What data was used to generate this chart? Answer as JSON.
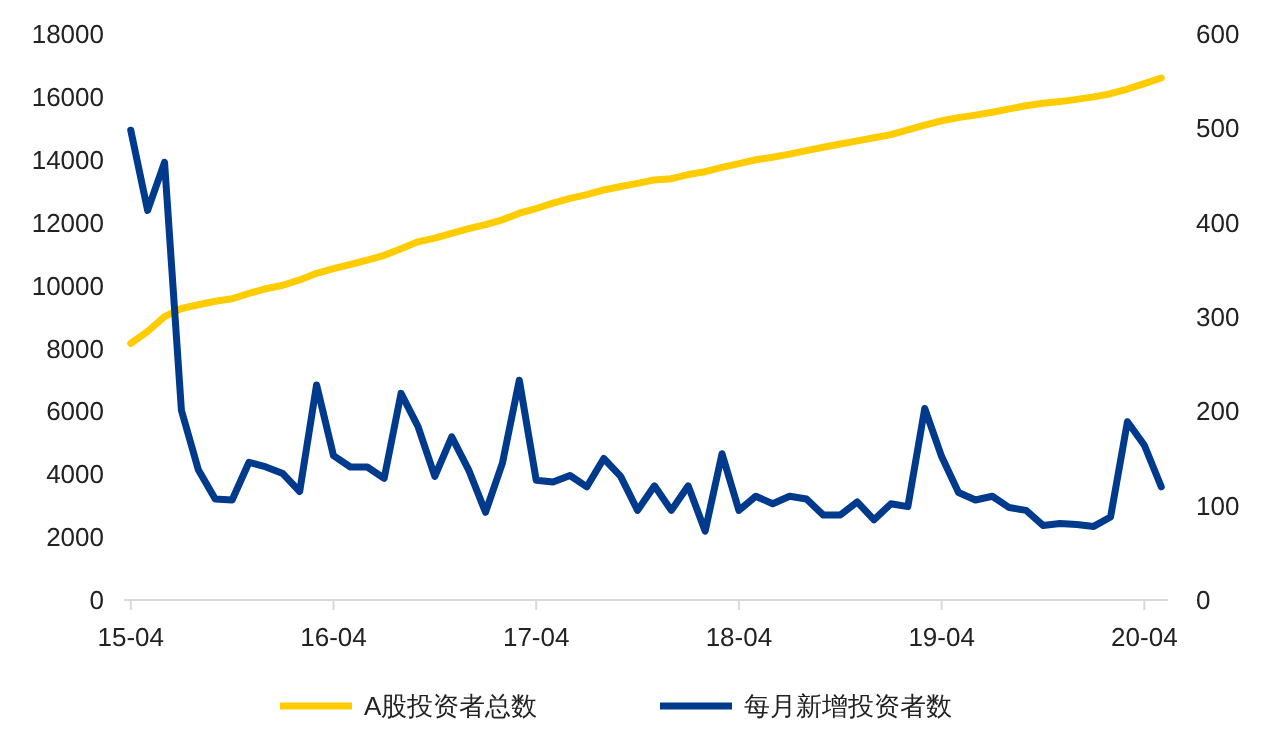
{
  "chart_data": {
    "type": "line",
    "categories": [
      "15-04",
      null,
      null,
      null,
      null,
      null,
      null,
      null,
      null,
      null,
      null,
      null,
      "16-04",
      null,
      null,
      null,
      null,
      null,
      null,
      null,
      null,
      null,
      null,
      null,
      "17-04",
      null,
      null,
      null,
      null,
      null,
      null,
      null,
      null,
      null,
      null,
      null,
      "18-04",
      null,
      null,
      null,
      null,
      null,
      null,
      null,
      null,
      null,
      null,
      null,
      "19-04",
      null,
      null,
      null,
      null,
      null,
      null,
      null,
      null,
      null,
      null,
      null,
      "20-04",
      null
    ],
    "series": [
      {
        "name": "A股投资者总数",
        "color": "#ffcc00",
        "values": [
          8160,
          8540,
          9010,
          9270,
          9390,
          9500,
          9580,
          9750,
          9900,
          10010,
          10180,
          10390,
          10540,
          10670,
          10810,
          10960,
          11170,
          11390,
          11510,
          11660,
          11810,
          11940,
          12090,
          12300,
          12450,
          12620,
          12770,
          12890,
          13040,
          13150,
          13250,
          13360,
          13400,
          13530,
          13620,
          13760,
          13880,
          14000,
          14080,
          14180,
          14290,
          14400,
          14500,
          14600,
          14700,
          14800,
          14950,
          15100,
          15240,
          15340,
          15420,
          15510,
          15620,
          15720,
          15800,
          15850,
          15920,
          16000,
          16100,
          16250,
          16420,
          16600
        ]
      },
      {
        "name": "每月新增投资者数",
        "color": "#003a8c",
        "axis": "y2",
        "values": [
          498,
          413,
          464,
          201,
          138,
          107,
          106,
          146,
          141,
          134,
          115,
          228,
          153,
          141,
          141,
          129,
          219,
          184,
          131,
          173,
          138,
          93,
          145,
          233,
          127,
          125,
          132,
          120,
          150,
          131,
          95,
          121,
          95,
          121,
          73,
          155,
          95,
          110,
          102,
          110,
          107,
          90,
          90,
          104,
          85,
          102,
          99,
          203,
          152,
          114,
          106,
          110,
          98,
          95,
          79,
          81,
          80,
          78,
          88,
          189,
          164,
          120
        ]
      }
    ],
    "ylim": [
      0,
      18000
    ],
    "yticks": [
      0,
      2000,
      4000,
      6000,
      8000,
      10000,
      12000,
      14000,
      16000,
      18000
    ],
    "y2lim": [
      0,
      600
    ],
    "y2ticks": [
      0,
      100,
      200,
      300,
      400,
      500,
      600
    ],
    "legend": "bottom"
  }
}
